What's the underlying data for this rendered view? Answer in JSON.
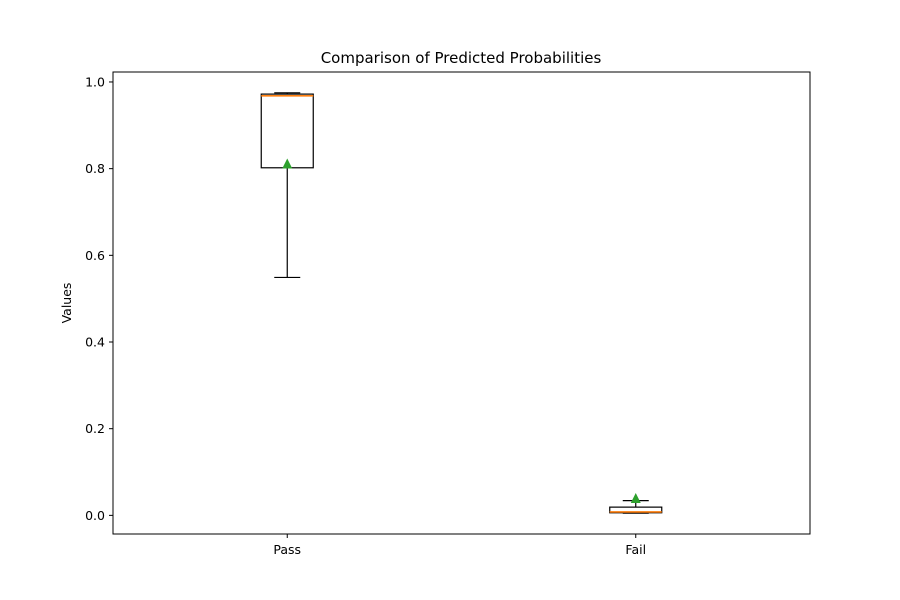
{
  "chart_data": {
    "type": "box",
    "title": "Comparison of Predicted Probabilities",
    "xlabel": "",
    "ylabel": "Values",
    "ylim": [
      -0.043,
      1.023
    ],
    "yticks": [
      0.0,
      0.2,
      0.4,
      0.6,
      0.8,
      1.0
    ],
    "ytick_labels": [
      "0.0",
      "0.2",
      "0.4",
      "0.6",
      "0.8",
      "1.0"
    ],
    "categories": [
      "Pass",
      "Fail"
    ],
    "boxes": [
      {
        "category": "Pass",
        "whisker_low": 0.549,
        "q1": 0.802,
        "median": 0.968,
        "q3": 0.972,
        "whisker_high": 0.975,
        "mean": 0.812
      },
      {
        "category": "Fail",
        "whisker_low": 0.005,
        "q1": 0.006,
        "median": 0.008,
        "q3": 0.019,
        "whisker_high": 0.034,
        "mean": 0.04
      }
    ],
    "colors": {
      "box": "#000000",
      "median": "#ff7f0e",
      "mean": "#2ca02c"
    },
    "grid": false,
    "legend": "none"
  }
}
